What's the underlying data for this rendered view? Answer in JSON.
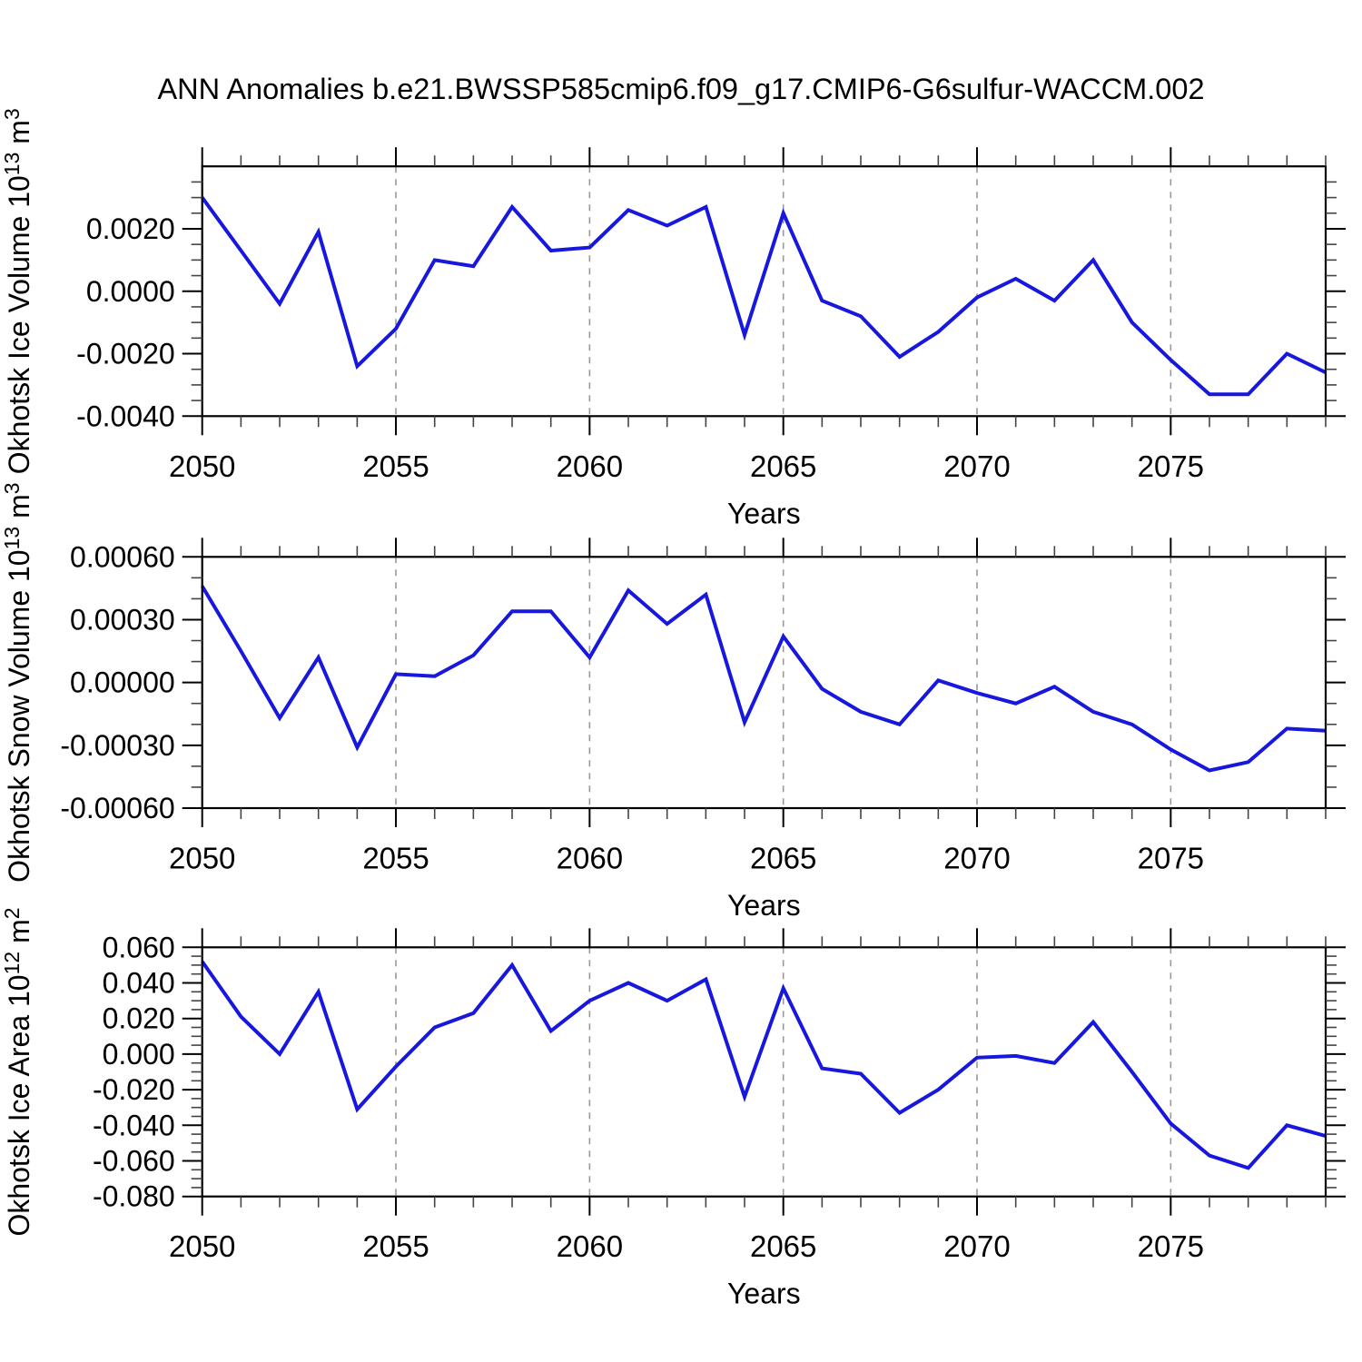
{
  "title": "ANN Anomalies b.e21.BWSSP585cmip6.f09_g17.CMIP6-G6sulfur-WACCM.002",
  "colors": {
    "line": "#1717dd",
    "axis": "#000000",
    "grid_dash": "#999999",
    "text": "#000000"
  },
  "years": [
    2050,
    2051,
    2052,
    2053,
    2054,
    2055,
    2056,
    2057,
    2058,
    2059,
    2060,
    2061,
    2062,
    2063,
    2064,
    2065,
    2066,
    2067,
    2068,
    2069,
    2070,
    2071,
    2072,
    2073,
    2074,
    2075,
    2076,
    2077,
    2078,
    2079
  ],
  "chart_data": [
    {
      "type": "line",
      "name": "ice-volume",
      "ylabel_parts": [
        {
          "text": "Okhotsk Ice Volume 10"
        },
        {
          "sup": "13"
        },
        {
          "text": " m"
        },
        {
          "sup": "3"
        }
      ],
      "xlabel": "Years",
      "values": [
        0.003,
        0.0013,
        -0.0004,
        0.0019,
        -0.0024,
        -0.0012,
        0.001,
        0.0008,
        0.0027,
        0.0013,
        0.0014,
        0.0026,
        0.0021,
        0.0027,
        -0.0014,
        0.0025,
        -0.0003,
        -0.0008,
        -0.0021,
        -0.0013,
        -0.0002,
        0.0004,
        -0.0003,
        0.001,
        -0.001,
        -0.0022,
        -0.0033,
        -0.0033,
        -0.002,
        -0.0026
      ],
      "ylim": [
        -0.004,
        0.004
      ],
      "yticks": {
        "values": [
          0.002,
          0.0,
          -0.002,
          -0.004
        ],
        "labels": [
          "0.0020",
          "0.0000",
          "-0.0020",
          "-0.0040"
        ]
      },
      "y_minor_step": 0.0005,
      "xticks": {
        "values": [
          2050,
          2055,
          2060,
          2065,
          2070,
          2075
        ],
        "labels": [
          "2050",
          "2055",
          "2060",
          "2065",
          "2070",
          "2075"
        ]
      },
      "x_minor_step": 1,
      "grid_x": [
        2055,
        2060,
        2065,
        2070,
        2075
      ]
    },
    {
      "type": "line",
      "name": "snow-volume",
      "ylabel_parts": [
        {
          "text": "Okhotsk Snow Volume 10"
        },
        {
          "sup": "13"
        },
        {
          "text": " m"
        },
        {
          "sup": "3"
        }
      ],
      "xlabel": "Years",
      "values": [
        0.00046,
        0.00015,
        -0.00017,
        0.00012,
        -0.00031,
        4e-05,
        3e-05,
        0.00013,
        0.00034,
        0.00034,
        0.00012,
        0.00044,
        0.00028,
        0.00042,
        -0.00019,
        0.00022,
        -3e-05,
        -0.00014,
        -0.0002,
        1e-05,
        -5e-05,
        -0.0001,
        -2e-05,
        -0.00014,
        -0.0002,
        -0.00032,
        -0.00042,
        -0.00038,
        -0.00022,
        -0.00023
      ],
      "ylim": [
        -0.0006,
        0.0006
      ],
      "yticks": {
        "values": [
          0.0006,
          0.0003,
          0.0,
          -0.0003,
          -0.0006
        ],
        "labels": [
          "0.00060",
          "0.00030",
          "0.00000",
          "-0.00030",
          "-0.00060"
        ]
      },
      "y_minor_step": 0.0001,
      "xticks": {
        "values": [
          2050,
          2055,
          2060,
          2065,
          2070,
          2075
        ],
        "labels": [
          "2050",
          "2055",
          "2060",
          "2065",
          "2070",
          "2075"
        ]
      },
      "x_minor_step": 1,
      "grid_x": [
        2055,
        2060,
        2065,
        2070,
        2075
      ]
    },
    {
      "type": "line",
      "name": "ice-area",
      "ylabel_parts": [
        {
          "text": "Okhotsk Ice Area 10"
        },
        {
          "sup": "12"
        },
        {
          "text": " m"
        },
        {
          "sup": "2"
        }
      ],
      "xlabel": "Years",
      "values": [
        0.052,
        0.021,
        0.0,
        0.035,
        -0.031,
        -0.007,
        0.015,
        0.023,
        0.05,
        0.013,
        0.03,
        0.04,
        0.03,
        0.042,
        -0.024,
        0.037,
        -0.008,
        -0.011,
        -0.033,
        -0.02,
        -0.002,
        -0.001,
        -0.005,
        0.018,
        -0.01,
        -0.039,
        -0.057,
        -0.064,
        -0.04,
        -0.046
      ],
      "ylim": [
        -0.08,
        0.06
      ],
      "yticks": {
        "values": [
          0.06,
          0.04,
          0.02,
          0.0,
          -0.02,
          -0.04,
          -0.06,
          -0.08
        ],
        "labels": [
          "0.060",
          "0.040",
          "0.020",
          "0.000",
          "-0.020",
          "-0.040",
          "-0.060",
          "-0.080"
        ]
      },
      "y_minor_step": 0.005,
      "xticks": {
        "values": [
          2050,
          2055,
          2060,
          2065,
          2070,
          2075
        ],
        "labels": [
          "2050",
          "2055",
          "2060",
          "2065",
          "2070",
          "2075"
        ]
      },
      "x_minor_step": 1,
      "grid_x": [
        2055,
        2060,
        2065,
        2070,
        2075
      ]
    }
  ]
}
